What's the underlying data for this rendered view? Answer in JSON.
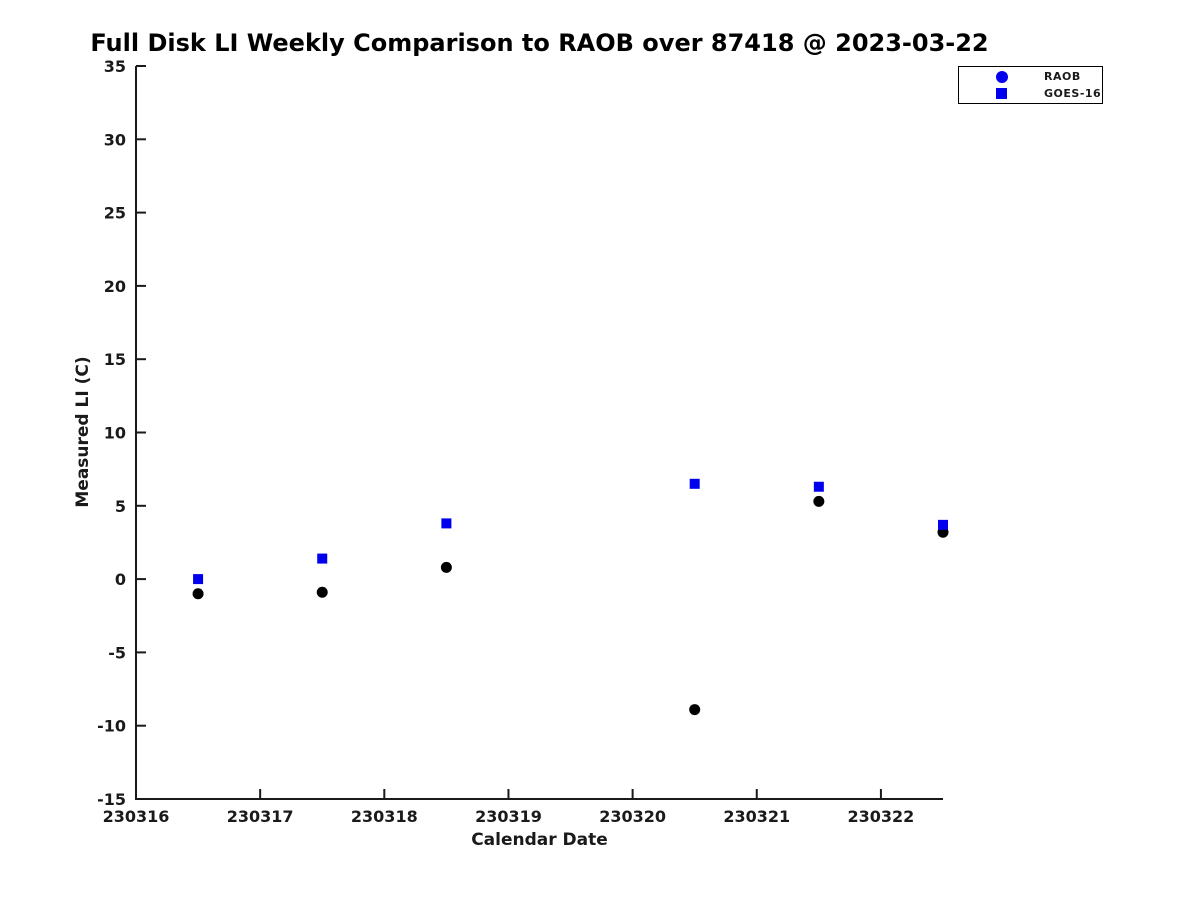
{
  "page": {
    "background": "#ffffff"
  },
  "chart_data": {
    "type": "scatter",
    "title": "Full Disk LI Weekly Comparison to RAOB over 87418 @ 2023-03-22",
    "xlabel": "Calendar Date",
    "ylabel": "Measured LI (C)",
    "xlim": [
      230316,
      230322.5
    ],
    "ylim": [
      -15,
      35
    ],
    "xticks": [
      230316,
      230317,
      230318,
      230319,
      230320,
      230321,
      230322
    ],
    "yticks": [
      -15,
      -10,
      -5,
      0,
      5,
      10,
      15,
      20,
      25,
      30,
      35
    ],
    "grid": false,
    "axis_color": "#1a1a1a",
    "legend": {
      "position": "top-right-outside",
      "items": [
        {
          "label": "RAOB",
          "marker": "circle",
          "marker_color": "#0000ee"
        },
        {
          "label": "GOES-16",
          "marker": "square",
          "marker_color": "#0000ee"
        }
      ]
    },
    "series": [
      {
        "name": "RAOB",
        "marker": "circle",
        "color": "#000000",
        "x": [
          230316.5,
          230317.5,
          230318.5,
          230320.5,
          230321.5,
          230322.5
        ],
        "y": [
          -1.0,
          -0.9,
          0.8,
          -8.9,
          5.3,
          3.2
        ]
      },
      {
        "name": "GOES-16",
        "marker": "square",
        "color": "#0000ee",
        "x": [
          230316.5,
          230317.5,
          230318.5,
          230320.5,
          230321.5,
          230322.5
        ],
        "y": [
          0.0,
          1.4,
          3.8,
          6.5,
          6.3,
          3.7
        ]
      }
    ]
  }
}
